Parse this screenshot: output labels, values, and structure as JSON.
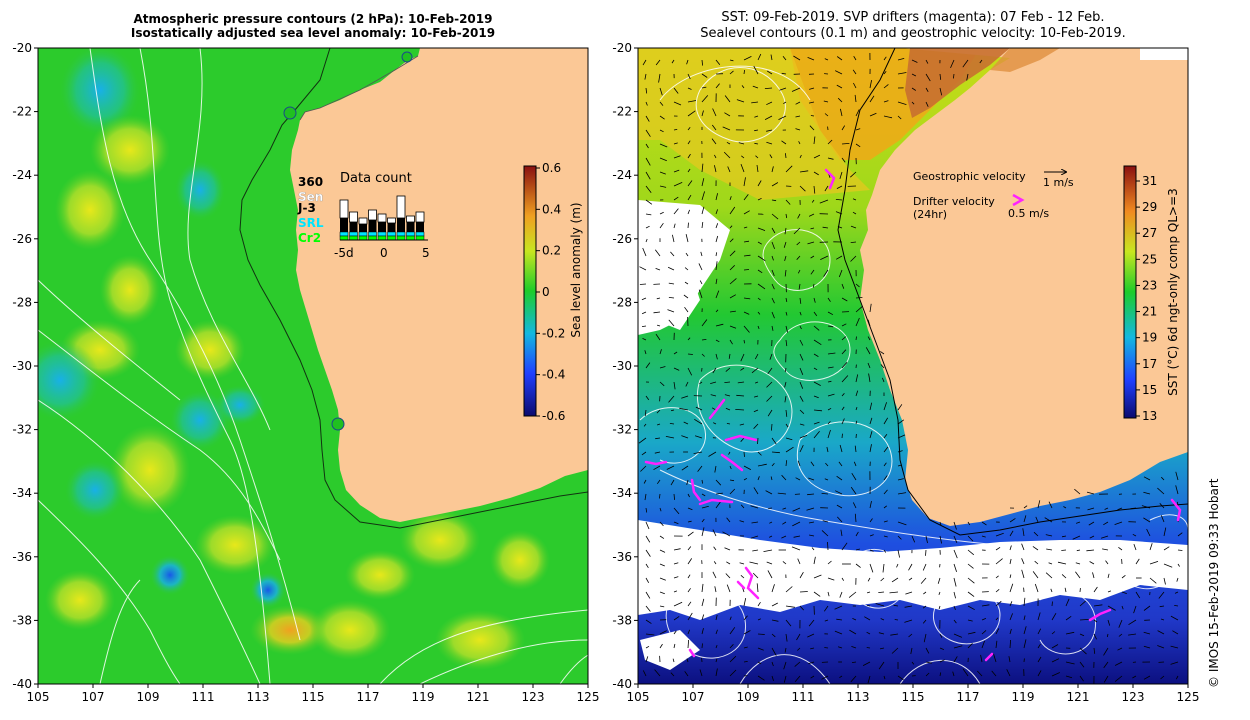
{
  "left_panel": {
    "title_line1": "Atmospheric pressure contours (2 hPa): 10-Feb-2019",
    "title_line2": "Isostatically adjusted sea level anomaly: 10-Feb-2019",
    "x_ticks": [
      "105",
      "107",
      "109",
      "111",
      "113",
      "115",
      "117",
      "119",
      "121",
      "123",
      "125"
    ],
    "y_ticks": [
      "-20",
      "-22",
      "-24",
      "-26",
      "-28",
      "-30",
      "-32",
      "-34",
      "-36",
      "-38",
      "-40"
    ],
    "colorbar": {
      "label": "Sea level anomaly (m)",
      "ticks": [
        "0.6",
        "0.4",
        "0.2",
        "0",
        "-0.2",
        "-0.4",
        "-0.6"
      ],
      "range": [
        -0.6,
        0.6
      ]
    },
    "data_count": {
      "title": "Data count",
      "legend": [
        "360",
        "Sen",
        "J-3",
        "SRL",
        "Cr2"
      ],
      "legend_colors": [
        "#000000",
        "#ffffff",
        "#000000",
        "#00e5ff",
        "#00ff00"
      ],
      "axis_ticks": [
        "-5d",
        "0",
        "5"
      ]
    }
  },
  "right_panel": {
    "title_line1": "SST: 09-Feb-2019. SVP drifters (magenta): 07 Feb - 12 Feb.",
    "title_line2": "Sealevel contours (0.1 m) and geostrophic velocity: 10-Feb-2019.",
    "x_ticks": [
      "105",
      "107",
      "109",
      "111",
      "113",
      "115",
      "117",
      "119",
      "121",
      "123",
      "125"
    ],
    "y_ticks": [
      "-20",
      "-22",
      "-24",
      "-26",
      "-28",
      "-30",
      "-32",
      "-34",
      "-36",
      "-38",
      "-40"
    ],
    "colorbar": {
      "label": "SST (°C) 6d ngt-only comp QL>=3",
      "ticks": [
        "31",
        "29",
        "27",
        "25",
        "23",
        "21",
        "19",
        "17",
        "15",
        "13"
      ],
      "range": [
        13,
        32
      ]
    },
    "legend": {
      "geo_label": "Geostrophic velocity",
      "geo_scale": "1 m/s",
      "drifter_label_1": "Drifter velocity",
      "drifter_label_2": "(24hr)",
      "drifter_scale": "0.5 m/s"
    }
  },
  "credit": "© IMOS 15-Feb-2019 09:33 Hobart",
  "colors": {
    "land": "#fbc896",
    "drifter": "#ff22ff",
    "sla_zero": "#22cc22"
  }
}
